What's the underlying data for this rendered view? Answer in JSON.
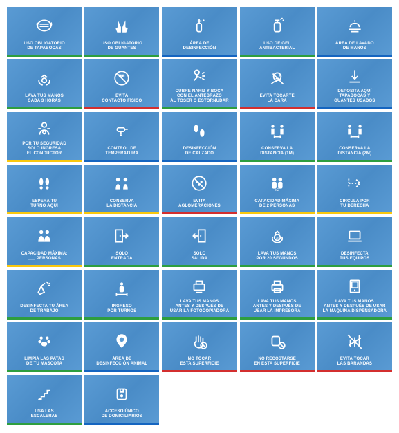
{
  "palette": {
    "tile_bg": "#5a9bd4",
    "tile_bg2": "#4a8cc7",
    "text": "#ffffff",
    "green": "#2e9e3f",
    "blue": "#1565c0",
    "red": "#d32f2f",
    "yellow": "#f9c80e"
  },
  "tiles": [
    {
      "icon": "mask",
      "label": "USO OBLIGATORIO\nDE TAPABOCAS",
      "bar": "green"
    },
    {
      "icon": "gloves",
      "label": "USO OBLIGATORIO\nDE GUANTES",
      "bar": "green"
    },
    {
      "icon": "sanitizer",
      "label": "ÁREA DE\nDESINFECCIÓN",
      "bar": "blue"
    },
    {
      "icon": "gel",
      "label": "USO DE GEL\nANTIBACTERIAL",
      "bar": "green"
    },
    {
      "icon": "washhands",
      "label": "ÁREA DE LAVADO\nDE MANOS",
      "bar": "blue"
    },
    {
      "icon": "wash3h",
      "label": "LAVA TUS MANOS\nCADA 3 HORAS",
      "bar": "green"
    },
    {
      "icon": "nocontact",
      "label": "EVITA\nCONTACTO FÍSICO",
      "bar": "red"
    },
    {
      "icon": "cough",
      "label": "CUBRE NARIZ Y BOCA\nCON EL ANTEBRAZO\nAL TOSER O ESTORNUDAR",
      "bar": "green"
    },
    {
      "icon": "noface",
      "label": "EVITA TOCARTE\nLA CARA",
      "bar": "red"
    },
    {
      "icon": "deposit",
      "label": "DEPOSITA AQUÍ\nTAPABOCAS Y\nGUANTES USADOS",
      "bar": "blue"
    },
    {
      "icon": "driver",
      "label": "POR TU SEGURIDAD\nSOLO INGRESA\nEL CONDUCTOR",
      "bar": "yellow"
    },
    {
      "icon": "temp",
      "label": "CONTROL DE\nTEMPERATURA",
      "bar": "blue"
    },
    {
      "icon": "shoes",
      "label": "DESINFECCIÓN\nDE CALZADO",
      "bar": "blue"
    },
    {
      "icon": "dist1",
      "label": "CONSERVA LA\nDISTANCIA (1M)",
      "bar": "green"
    },
    {
      "icon": "dist2",
      "label": "CONSERVA LA\nDISTANCIA (2M)",
      "bar": "green"
    },
    {
      "icon": "feet",
      "label": "ESPERA TU\nTURNO AQUÍ",
      "bar": "yellow"
    },
    {
      "icon": "distkeep",
      "label": "CONSERVA\nLA DISTANCIA",
      "bar": "yellow"
    },
    {
      "icon": "crowd",
      "label": "EVITA\nAGLOMERACIONES",
      "bar": "red"
    },
    {
      "icon": "cap2",
      "label": "CAPACIDAD MÁXIMA\nDE 2 PERSONAS",
      "bar": "yellow"
    },
    {
      "icon": "right",
      "label": "CIRCULA POR\nTU DERECHA",
      "bar": "yellow"
    },
    {
      "icon": "capmax",
      "label": "CAPACIDAD MÁXIMA:\n___ PERSONAS",
      "bar": "yellow"
    },
    {
      "icon": "enter",
      "label": "SOLO\nENTRADA",
      "bar": "green"
    },
    {
      "icon": "exit",
      "label": "SOLO\nSALIDA",
      "bar": "green"
    },
    {
      "icon": "wash20",
      "label": "LAVA TUS MANOS\nPOR 20 SEGUNDOS",
      "bar": "green"
    },
    {
      "icon": "laptop",
      "label": "DESINFECTA\nTUS EQUIPOS",
      "bar": "green"
    },
    {
      "icon": "spray",
      "label": "DESINFECTA TU ÁREA\nDE TRABAJO",
      "bar": "green"
    },
    {
      "icon": "turns",
      "label": "INGRESO\nPOR TURNOS",
      "bar": "green"
    },
    {
      "icon": "copier",
      "label": "LAVA TUS MANOS\nANTES Y DESPUÉS DE\nUSAR LA FOTOCOPIADORA",
      "bar": "green"
    },
    {
      "icon": "printer",
      "label": "LAVA TUS MANOS\nANTES Y DESPUÉS DE\nUSAR LA IMPRESORA",
      "bar": "green"
    },
    {
      "icon": "vending",
      "label": "LAVA TUS MANOS\nANTES Y DESPUÉS DE USAR\nLA MÁQUINA DISPENSADORA",
      "bar": "green"
    },
    {
      "icon": "pet",
      "label": "LIMPIA LAS PATAS\nDE TU MASCOTA",
      "bar": "green"
    },
    {
      "icon": "petarea",
      "label": "ÁREA DE\nDESINFECCIÓN ANIMAL",
      "bar": "blue"
    },
    {
      "icon": "notouch",
      "label": "NO TOCAR\nESTA SUPERFICIE",
      "bar": "red"
    },
    {
      "icon": "nolean",
      "label": "NO RECOSTARSE\nEN ESTA SUPERFICIE",
      "bar": "red"
    },
    {
      "icon": "rails",
      "label": "EVITA TOCAR\nLAS BARANDAS",
      "bar": "red"
    },
    {
      "icon": "stairs",
      "label": "USA LAS\nESCALERAS",
      "bar": "green"
    },
    {
      "icon": "delivery",
      "label": "ACCESO ÚNICO\nDE DOMICILIARIOS",
      "bar": "blue"
    }
  ]
}
